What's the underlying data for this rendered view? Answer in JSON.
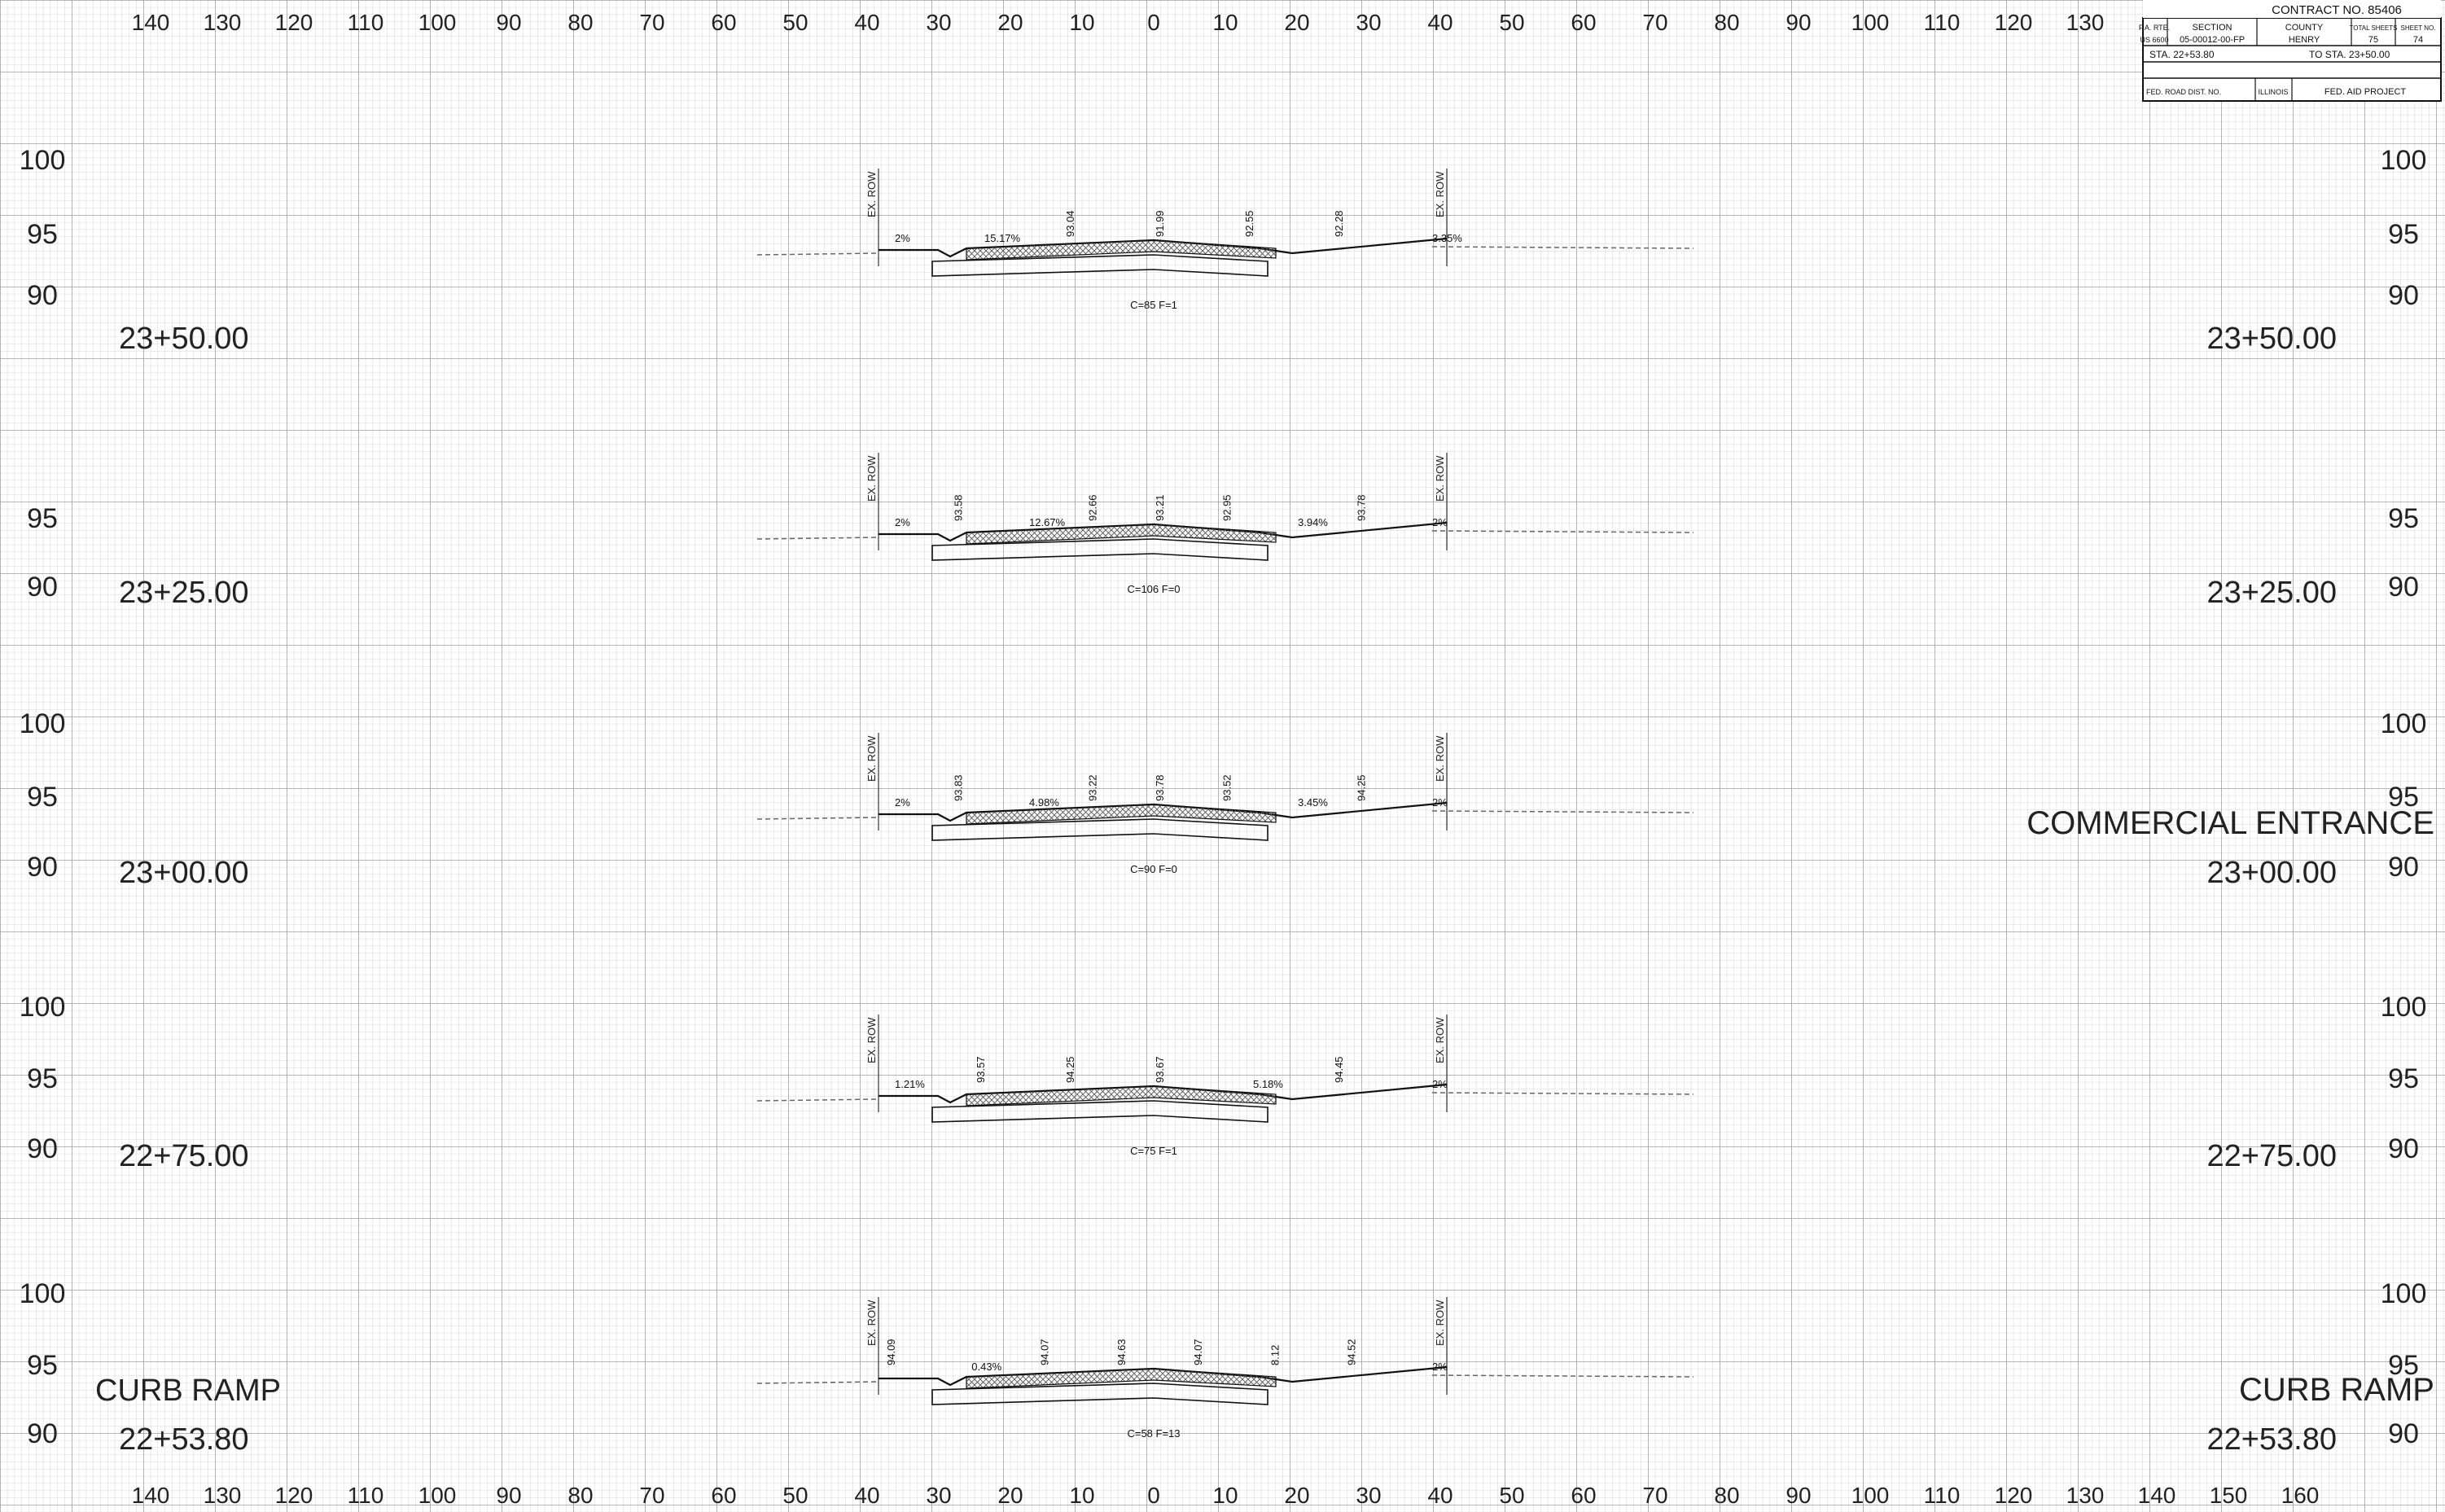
{
  "title_block": {
    "contract": "CONTRACT NO. 85406",
    "headers": {
      "rte": "F.A. RTE.",
      "section": "SECTION",
      "county": "COUNTY",
      "total_sheets": "TOTAL SHEETS",
      "sheet_no": "SHEET NO."
    },
    "values": {
      "rte": "US 6600",
      "section": "05-00012-00-FP",
      "county": "HENRY",
      "total_sheets": "75",
      "sheet_no": "74"
    },
    "station_from": "STA. 22+53.80",
    "station_to": "TO STA. 23+50.00",
    "fed_road_dist": "FED. ROAD DIST. NO.",
    "state": "ILLINOIS",
    "fed_aid": "FED. AID PROJECT"
  },
  "x_axis_top": [
    "140",
    "130",
    "120",
    "110",
    "100",
    "90",
    "80",
    "70",
    "60",
    "50",
    "40",
    "30",
    "20",
    "10",
    "0",
    "10",
    "20",
    "30",
    "40",
    "50",
    "60",
    "70",
    "80",
    "90",
    "100",
    "110",
    "120",
    "130"
  ],
  "x_axis_bottom": [
    "140",
    "130",
    "120",
    "110",
    "100",
    "90",
    "80",
    "70",
    "60",
    "50",
    "40",
    "30",
    "20",
    "10",
    "0",
    "10",
    "20",
    "30",
    "40",
    "50",
    "60",
    "70",
    "80",
    "90",
    "100",
    "110",
    "120",
    "130",
    "140",
    "150",
    "160"
  ],
  "row_label": "EX. ROW",
  "sections": [
    {
      "station": "23+50.00",
      "elevation_labels": [
        "100",
        "95",
        "90"
      ],
      "area": "C=85   F=1",
      "right_note": "",
      "left_note": "",
      "annotations": [
        "2%",
        "15.17%",
        "93.04",
        "91.99",
        "92.55",
        "92.28",
        "3.35%"
      ]
    },
    {
      "station": "23+25.00",
      "elevation_labels": [
        "95",
        "90"
      ],
      "area": "C=106   F=0",
      "right_note": "",
      "left_note": "",
      "annotations": [
        "2%",
        "93.58",
        "12.67%",
        "92.66",
        "93.21",
        "92.95",
        "3.94%",
        "93.78",
        "2%"
      ]
    },
    {
      "station": "23+00.00",
      "elevation_labels": [
        "100",
        "95",
        "90"
      ],
      "area": "C=90   F=0",
      "right_note": "COMMERCIAL ENTRANCE",
      "left_note": "",
      "annotations": [
        "2%",
        "93.83",
        "4.98%",
        "93.22",
        "93.78",
        "93.52",
        "3.45%",
        "94.25",
        "2%"
      ]
    },
    {
      "station": "22+75.00",
      "elevation_labels": [
        "100",
        "95",
        "90"
      ],
      "area": "C=75   F=1",
      "right_note": "",
      "left_note": "",
      "annotations": [
        "1.21%",
        "93.57",
        "94.25",
        "93.67",
        "5.18%",
        "94.45",
        "2%"
      ]
    },
    {
      "station": "22+53.80",
      "elevation_labels": [
        "100",
        "95",
        "90"
      ],
      "area": "C=58   F=13",
      "right_note": "CURB RAMP",
      "left_note": "CURB RAMP",
      "annotations": [
        "94.09",
        "0.43%",
        "94.07",
        "94.63",
        "94.07",
        "8.12",
        "94.52",
        "2%"
      ]
    }
  ],
  "colors": {
    "ink": "#111111",
    "grid_minor": "#c8c8c8",
    "grid_major": "#8a8a8a",
    "hatch": "#555555"
  }
}
